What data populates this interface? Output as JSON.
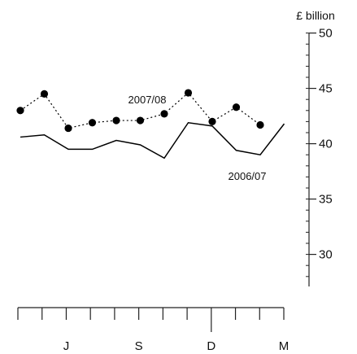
{
  "chart_data": {
    "type": "line",
    "y_unit_label": "£ billion",
    "ylim": [
      27.5,
      50
    ],
    "y_ticks": [
      30,
      35,
      40,
      45,
      50
    ],
    "x_count": 12,
    "month_labels": [
      {
        "index": 2,
        "label": "J"
      },
      {
        "index": 5,
        "label": "S"
      },
      {
        "index": 8,
        "label": "D"
      },
      {
        "index": 11,
        "label": "M"
      }
    ],
    "series": [
      {
        "name": "2007/08",
        "style": "dotted-markers",
        "color": "#000000",
        "values": [
          43.0,
          44.5,
          41.4,
          41.9,
          42.1,
          42.1,
          42.7,
          44.6,
          42.0,
          43.3,
          41.7
        ]
      },
      {
        "name": "2006/07",
        "style": "solid",
        "color": "#000000",
        "values": [
          40.6,
          40.8,
          39.5,
          39.5,
          40.3,
          39.9,
          38.7,
          41.9,
          41.6,
          39.4,
          39.0,
          41.8
        ]
      }
    ]
  }
}
